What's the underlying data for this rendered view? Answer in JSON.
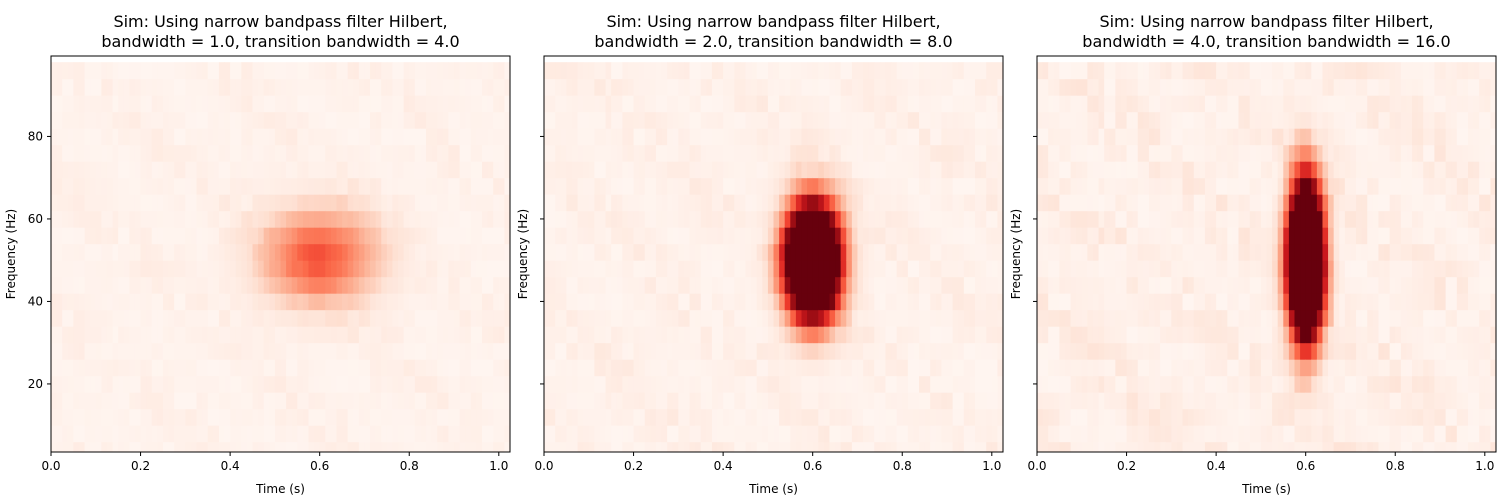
{
  "chart_data": [
    {
      "type": "heatmap",
      "title": "Sim: Using narrow bandpass filter Hilbert,\nbandwidth = 1.0, transition bandwidth = 4.0",
      "xlabel": "Time (s)",
      "ylabel": "Frequency (Hz)",
      "xlim": [
        0,
        1.025
      ],
      "ylim": [
        3.5,
        99.5
      ],
      "xticks": [
        "0.0",
        "0.2",
        "0.4",
        "0.6",
        "0.8",
        "1.0"
      ],
      "yticks": [
        "20",
        "40",
        "60",
        "80"
      ],
      "show_ytick_labels": true,
      "colormap": "Reds",
      "grid": false,
      "peak": {
        "time": 0.6,
        "freq": 51,
        "time_spread": 0.09,
        "freq_spread": 8,
        "intensity": 0.55
      },
      "background_level": 0.04
    },
    {
      "type": "heatmap",
      "title": "Sim: Using narrow bandpass filter Hilbert,\nbandwidth = 2.0, transition bandwidth = 8.0",
      "xlabel": "Time (s)",
      "ylabel": "Frequency (Hz)",
      "xlim": [
        0,
        1.025
      ],
      "ylim": [
        3.5,
        99.5
      ],
      "xticks": [
        "0.0",
        "0.2",
        "0.4",
        "0.6",
        "0.8",
        "1.0"
      ],
      "yticks": [
        "20",
        "40",
        "60",
        "80"
      ],
      "show_ytick_labels": false,
      "colormap": "Reds",
      "grid": false,
      "peak": {
        "time": 0.6,
        "freq": 50,
        "time_spread": 0.04,
        "freq_spread": 9,
        "intensity": 3.0
      },
      "background_level": 0.05
    },
    {
      "type": "heatmap",
      "title": "Sim: Using narrow bandpass filter Hilbert,\nbandwidth = 4.0, transition bandwidth = 16.0",
      "xlabel": "Time (s)",
      "ylabel": "Frequency (Hz)",
      "xlim": [
        0,
        1.025
      ],
      "ylim": [
        3.5,
        99.5
      ],
      "xticks": [
        "0.0",
        "0.2",
        "0.4",
        "0.6",
        "0.8",
        "1.0"
      ],
      "yticks": [
        "20",
        "40",
        "60",
        "80"
      ],
      "show_ytick_labels": false,
      "colormap": "Reds",
      "grid": false,
      "peak": {
        "time": 0.6,
        "freq": 50,
        "time_spread": 0.025,
        "freq_spread": 12,
        "intensity": 3.5
      },
      "background_level": 0.07
    }
  ]
}
